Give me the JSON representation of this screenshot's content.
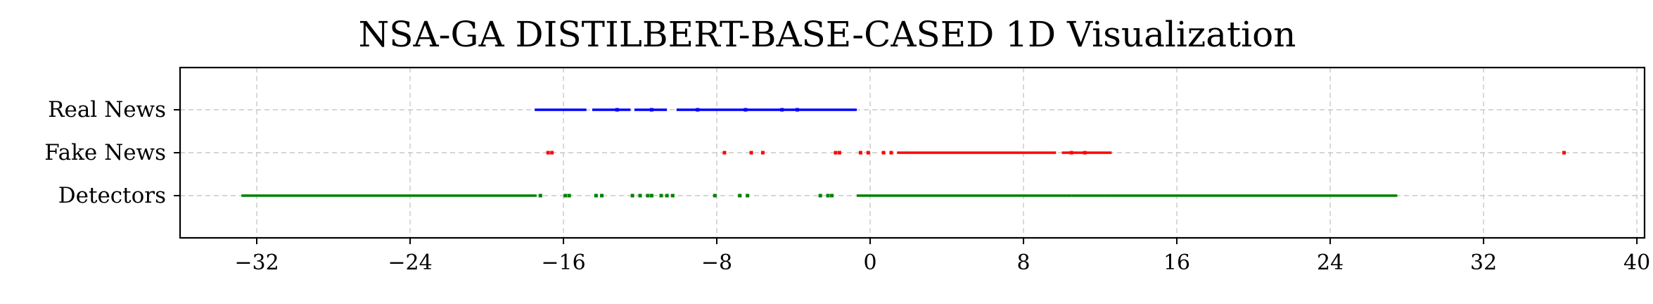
{
  "chart_data": {
    "type": "scatter",
    "title": "NSA-GA DISTILBERT-BASE-CASED 1D Visualization",
    "xlabel": "",
    "ylabel": "",
    "xlim": [
      -36,
      40.4
    ],
    "x_ticks": [
      "−32",
      "−24",
      "−16",
      "−8",
      "0",
      "8",
      "16",
      "24",
      "32",
      "40"
    ],
    "x_tick_values": [
      -32,
      -24,
      -16,
      -8,
      0,
      8,
      16,
      24,
      32,
      40
    ],
    "grid": true,
    "categories": [
      "Real News",
      "Fake News",
      "Detectors"
    ],
    "series": [
      {
        "name": "Real News",
        "color": "#0000ff",
        "ranges": [
          [
            -17.5,
            -14.8
          ],
          [
            -14.5,
            -12.5
          ],
          [
            -12.3,
            -10.6
          ],
          [
            -10.1,
            -0.7
          ]
        ],
        "points": [
          -13.2,
          -11.4,
          -9.0,
          -6.5,
          -4.6,
          -3.8
        ]
      },
      {
        "name": "Fake News",
        "color": "#ff0000",
        "ranges": [
          [
            1.4,
            9.7
          ],
          [
            10.0,
            12.6
          ]
        ],
        "points": [
          -16.8,
          -16.6,
          -7.6,
          -6.2,
          -5.6,
          -1.8,
          -1.6,
          -0.5,
          -0.1,
          0.7,
          1.1,
          10.5,
          11.2,
          36.2
        ]
      },
      {
        "name": "Detectors",
        "color": "#008000",
        "ranges": [
          [
            -32.8,
            -17.4
          ],
          [
            -0.7,
            10.5
          ],
          [
            10.5,
            12.6
          ],
          [
            12.6,
            27.5
          ]
        ],
        "points": [
          -17.2,
          -15.9,
          -15.7,
          -14.3,
          -14.0,
          -12.4,
          -12.0,
          -11.6,
          -11.4,
          -10.9,
          -10.6,
          -10.3,
          -8.1,
          -6.8,
          -6.4,
          -2.6,
          -2.2,
          -2.0
        ]
      }
    ]
  }
}
